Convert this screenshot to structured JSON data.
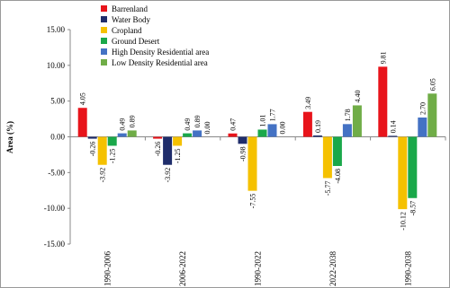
{
  "chart_data": {
    "type": "bar",
    "y_label": "Area (%)",
    "categories": [
      "1990-2006",
      "2006-2022",
      "1990-2022",
      "2022-2038",
      "1990-2038"
    ],
    "series": [
      {
        "name": "Barrenland",
        "color": "#e8141b",
        "values": [
          4.05,
          -0.26,
          0.47,
          3.49,
          9.81
        ],
        "value_labels": [
          "4.05",
          "-0.26",
          "0.47",
          "3.49",
          "9.81"
        ]
      },
      {
        "name": "Water Body",
        "color": "#1f2d6b",
        "values": [
          -0.26,
          -3.92,
          -0.98,
          0.19,
          0.14
        ],
        "value_labels": [
          "-0.26",
          "-3.92",
          "-0.98",
          "0.19",
          "0.14"
        ]
      },
      {
        "name": "Cropland",
        "color": "#f5c100",
        "values": [
          -3.92,
          -1.25,
          -7.55,
          -5.77,
          -10.12
        ],
        "value_labels": [
          "-3.92",
          "-1.25",
          "-7.55",
          "-5.77",
          "-10.12"
        ]
      },
      {
        "name": "Ground Desert",
        "color": "#1aa84a",
        "values": [
          -1.25,
          0.49,
          1.01,
          -4.08,
          -8.57
        ],
        "value_labels": [
          "-1.25",
          "0.49",
          "1.01",
          "-4.08",
          "-8.57"
        ]
      },
      {
        "name": "High Density Residential area",
        "color": "#4472c4",
        "values": [
          0.49,
          0.89,
          1.77,
          1.78,
          2.7
        ],
        "value_labels": [
          "0.49",
          "0.89",
          "1.77",
          "1.78",
          "2.70"
        ]
      },
      {
        "name": "Low Density Residential area",
        "color": "#70ad47",
        "values": [
          0.89,
          0.0,
          0.0,
          4.4,
          6.05
        ],
        "value_labels": [
          "0.89",
          "0.00",
          "0.00",
          "4.40",
          "6.05"
        ]
      }
    ],
    "ylim": [
      -15,
      15
    ],
    "yticks": [
      {
        "value": -15,
        "label": "-15.00"
      },
      {
        "value": -10,
        "label": "-10.00"
      },
      {
        "value": -5,
        "label": "-5.00"
      },
      {
        "value": 0,
        "label": "0.00"
      },
      {
        "value": 5,
        "label": "5.00"
      },
      {
        "value": 10,
        "label": "10.00"
      },
      {
        "value": 15,
        "label": "15.00"
      }
    ],
    "legend": "upper-left"
  }
}
